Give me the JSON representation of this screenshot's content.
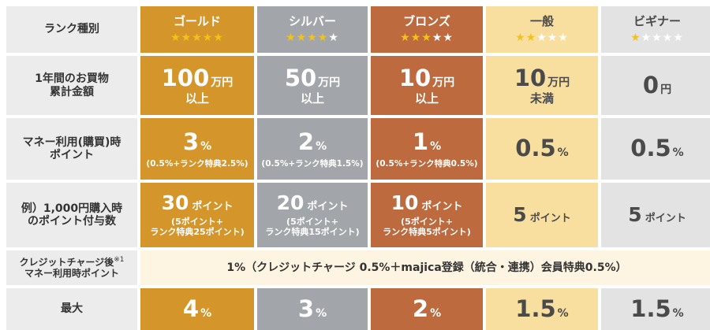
{
  "header": {
    "label": "ランク種別",
    "ranks": [
      {
        "name": "ゴールド",
        "stars_on": 5,
        "stars_total": 5
      },
      {
        "name": "シルバー",
        "stars_on": 4,
        "stars_total": 5
      },
      {
        "name": "ブロンズ",
        "stars_on": 3,
        "stars_total": 5
      },
      {
        "name": "一般",
        "stars_on": 2,
        "stars_total": 5
      },
      {
        "name": "ビギナー",
        "stars_on": 1,
        "stars_total": 5
      }
    ]
  },
  "rows": {
    "purchase": {
      "label_line1": "1年間のお買物",
      "label_line2": "累計金額",
      "gold": {
        "value": "100",
        "unit": "万円",
        "sub": "以上"
      },
      "silver": {
        "value": "50",
        "unit": "万円",
        "sub": "以上"
      },
      "bronze": {
        "value": "10",
        "unit": "万円",
        "sub": "以上"
      },
      "general": {
        "value": "10",
        "unit": "万円",
        "sub": "未満"
      },
      "beginner": {
        "value": "0",
        "unit": "円",
        "sub": ""
      }
    },
    "money_points": {
      "label_line1": "マネー利用(購買)時",
      "label_line2": "ポイント",
      "gold": {
        "value": "3",
        "unit": "%",
        "sub": "(0.5%+ランク特典2.5%)"
      },
      "silver": {
        "value": "2",
        "unit": "%",
        "sub": "(0.5%+ランク特典1.5%)"
      },
      "bronze": {
        "value": "1",
        "unit": "%",
        "sub": "(0.5%+ランク特典0.5%)"
      },
      "general": {
        "value": "0.5",
        "unit": "%"
      },
      "beginner": {
        "value": "0.5",
        "unit": "%"
      }
    },
    "example": {
      "label_line1": "例）1,000円購入時",
      "label_line2": "のポイント付与数",
      "gold": {
        "value": "30",
        "unit": "ポイント",
        "sub1": "(5ポイント+",
        "sub2": "ランク特典25ポイント)"
      },
      "silver": {
        "value": "20",
        "unit": "ポイント",
        "sub1": "(5ポイント+",
        "sub2": "ランク特典15ポイント)"
      },
      "bronze": {
        "value": "10",
        "unit": "ポイント",
        "sub1": "(5ポイント+",
        "sub2": "ランク特典5ポイント)"
      },
      "general": {
        "value": "5",
        "unit": "ポイント"
      },
      "beginner": {
        "value": "5",
        "unit": "ポイント"
      }
    },
    "credit": {
      "label_line1": "クレジットチャージ後",
      "label_mark": "※1",
      "label_line2": "マネー利用時ポイント",
      "text": "1%（クレジットチャージ 0.5%＋majica登録（統合・連携）会員特典0.5%）"
    },
    "max": {
      "label": "最大",
      "gold": {
        "value": "4",
        "unit": "%"
      },
      "silver": {
        "value": "3",
        "unit": "%"
      },
      "bronze": {
        "value": "2",
        "unit": "%"
      },
      "general": {
        "value": "1.5",
        "unit": "%"
      },
      "beginner": {
        "value": "1.5",
        "unit": "%"
      }
    }
  },
  "colors": {
    "gold": "#d4952a",
    "silver": "#a2a6aa",
    "bronze": "#bd6a3e",
    "general": "#f8dfa0",
    "beginner": "#e3e3e3",
    "star_on": "#f2c21b"
  }
}
